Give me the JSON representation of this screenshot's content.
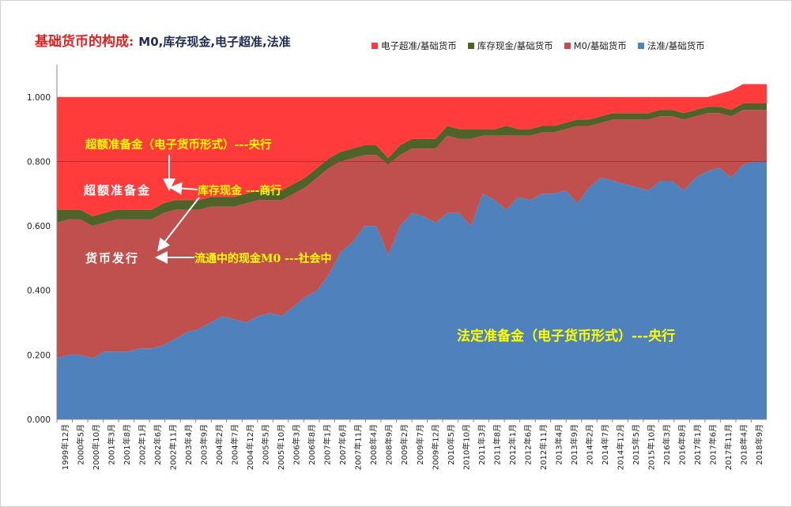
{
  "title": {
    "main": "基础货币的构成:",
    "sub": "M0,库存现金,电子超准,法准"
  },
  "legend": [
    {
      "label": "电子超准/基础货币",
      "color": "#ff3b3b"
    },
    {
      "label": "库存现金/基础货币",
      "color": "#4f6228"
    },
    {
      "label": "M0/基础货币",
      "color": "#c0504d"
    },
    {
      "label": "法准/基础货币",
      "color": "#4f81bd"
    }
  ],
  "annotations": [
    {
      "text": "超额准备金（电子货币形式）---央行",
      "color": "#ffff00"
    },
    {
      "text": "超额准备金",
      "color": "#ffffff"
    },
    {
      "text": "库存现金 ---商行",
      "color": "#ffff00"
    },
    {
      "text": "货币发行",
      "color": "#ffffff"
    },
    {
      "text": "流通中的现金M0 ---社会中",
      "color": "#ffff00"
    },
    {
      "text": "法定准备金（电子货币形式）---央行",
      "color": "#ffff00"
    }
  ],
  "chart_data": {
    "type": "area",
    "stacked": true,
    "grid": "horizontal at 0.800 only",
    "ylim": [
      0,
      1.1
    ],
    "yticks": [
      "0.000",
      "0.200",
      "0.400",
      "0.600",
      "0.800",
      "1.000"
    ],
    "xtick_labels": [
      "1999年12月",
      "2000年5月",
      "2000年10月",
      "2001年3月",
      "2001年8月",
      "2002年1月",
      "2002年6月",
      "2002年11月",
      "2003年4月",
      "2003年9月",
      "2004年2月",
      "2004年7月",
      "2004年12月",
      "2005年5月",
      "2005年10月",
      "2006年3月",
      "2006年8月",
      "2007年1月",
      "2007年6月",
      "2007年11月",
      "2008年4月",
      "2008年9月",
      "2009年2月",
      "2009年7月",
      "2009年12月",
      "2010年5月",
      "2010年10月",
      "2011年3月",
      "2011年8月",
      "2012年1月",
      "2012年6月",
      "2012年11月",
      "2013年4月",
      "2013年9月",
      "2014年2月",
      "2014年7月",
      "2014年12月",
      "2015年5月",
      "2015年10月",
      "2016年3月",
      "2016年8月",
      "2017年1月",
      "2017年6月",
      "2017年11月",
      "2018年4月",
      "2018年9月"
    ],
    "series": [
      {
        "name": "法准/基础货币",
        "color": "#4f81bd",
        "values": [
          0.19,
          0.2,
          0.2,
          0.19,
          0.21,
          0.21,
          0.21,
          0.22,
          0.22,
          0.23,
          0.25,
          0.27,
          0.28,
          0.3,
          0.32,
          0.31,
          0.3,
          0.32,
          0.33,
          0.32,
          0.35,
          0.38,
          0.4,
          0.45,
          0.52,
          0.55,
          0.6,
          0.6,
          0.51,
          0.6,
          0.64,
          0.63,
          0.61,
          0.64,
          0.64,
          0.6,
          0.7,
          0.68,
          0.65,
          0.69,
          0.68,
          0.7,
          0.7,
          0.71,
          0.67,
          0.72,
          0.75,
          0.74,
          0.73,
          0.72,
          0.71,
          0.74,
          0.74,
          0.71,
          0.75,
          0.77,
          0.78,
          0.75,
          0.79,
          0.8,
          0.8
        ]
      },
      {
        "name": "M0/基础货币",
        "color": "#c0504d",
        "values": [
          0.42,
          0.42,
          0.42,
          0.41,
          0.4,
          0.41,
          0.41,
          0.4,
          0.4,
          0.41,
          0.4,
          0.38,
          0.37,
          0.36,
          0.34,
          0.35,
          0.37,
          0.36,
          0.35,
          0.36,
          0.35,
          0.34,
          0.35,
          0.33,
          0.28,
          0.26,
          0.22,
          0.22,
          0.28,
          0.22,
          0.2,
          0.21,
          0.23,
          0.24,
          0.23,
          0.27,
          0.18,
          0.2,
          0.23,
          0.19,
          0.2,
          0.19,
          0.19,
          0.19,
          0.24,
          0.19,
          0.17,
          0.19,
          0.2,
          0.21,
          0.22,
          0.2,
          0.2,
          0.22,
          0.19,
          0.18,
          0.17,
          0.19,
          0.17,
          0.16,
          0.16
        ]
      },
      {
        "name": "库存现金/基础货币",
        "color": "#4f6228",
        "values": [
          0.04,
          0.03,
          0.03,
          0.03,
          0.03,
          0.03,
          0.03,
          0.03,
          0.03,
          0.03,
          0.03,
          0.03,
          0.03,
          0.03,
          0.03,
          0.03,
          0.03,
          0.03,
          0.03,
          0.03,
          0.03,
          0.03,
          0.03,
          0.03,
          0.03,
          0.03,
          0.03,
          0.03,
          0.02,
          0.03,
          0.03,
          0.03,
          0.03,
          0.03,
          0.03,
          0.03,
          0.02,
          0.02,
          0.03,
          0.02,
          0.02,
          0.02,
          0.02,
          0.02,
          0.02,
          0.02,
          0.02,
          0.02,
          0.02,
          0.02,
          0.02,
          0.02,
          0.02,
          0.02,
          0.02,
          0.02,
          0.02,
          0.02,
          0.02,
          0.02,
          0.02
        ]
      },
      {
        "name": "电子超准/基础货币",
        "color": "#ff3b3b",
        "values": [
          0.35,
          0.35,
          0.35,
          0.37,
          0.36,
          0.35,
          0.35,
          0.35,
          0.35,
          0.33,
          0.32,
          0.32,
          0.32,
          0.31,
          0.31,
          0.31,
          0.3,
          0.29,
          0.29,
          0.29,
          0.27,
          0.25,
          0.22,
          0.19,
          0.17,
          0.16,
          0.15,
          0.15,
          0.19,
          0.15,
          0.13,
          0.13,
          0.13,
          0.09,
          0.1,
          0.1,
          0.1,
          0.1,
          0.09,
          0.1,
          0.1,
          0.09,
          0.09,
          0.08,
          0.07,
          0.07,
          0.06,
          0.05,
          0.05,
          0.05,
          0.05,
          0.04,
          0.04,
          0.05,
          0.04,
          0.03,
          0.04,
          0.06,
          0.06,
          0.06,
          0.06
        ]
      }
    ]
  }
}
